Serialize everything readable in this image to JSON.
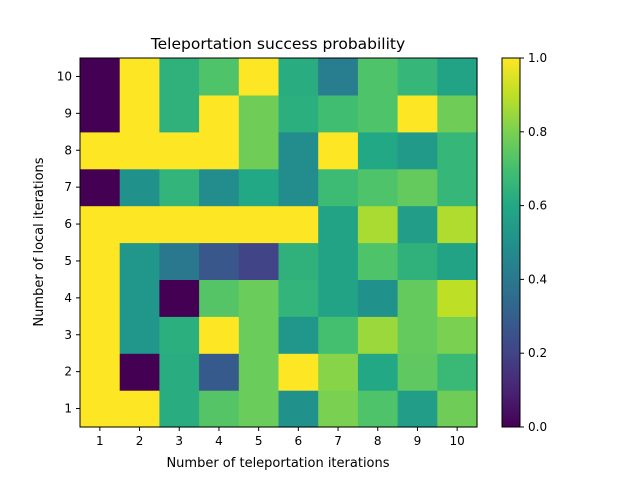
{
  "chart_data": {
    "type": "heatmap",
    "title": "Teleportation success probability",
    "xlabel": "Number of teleportation iterations",
    "ylabel": "Number of local iterations",
    "x_categories": [
      "1",
      "2",
      "3",
      "4",
      "5",
      "6",
      "7",
      "8",
      "9",
      "10"
    ],
    "y_categories": [
      "1",
      "2",
      "3",
      "4",
      "5",
      "6",
      "7",
      "8",
      "9",
      "10"
    ],
    "colormap": "viridis",
    "clim": [
      0,
      1
    ],
    "colorbar_ticks": [
      "0.0",
      "0.2",
      "0.4",
      "0.6",
      "0.8",
      "1.0"
    ],
    "values": [
      [
        1.0,
        1.0,
        0.62,
        0.73,
        0.77,
        0.5,
        0.8,
        0.72,
        0.55,
        0.78
      ],
      [
        1.0,
        0.0,
        0.62,
        0.28,
        0.77,
        1.0,
        0.82,
        0.6,
        0.75,
        0.67
      ],
      [
        1.0,
        0.52,
        0.63,
        1.0,
        0.77,
        0.52,
        0.7,
        0.85,
        0.76,
        0.8
      ],
      [
        1.0,
        0.52,
        0.0,
        0.73,
        0.77,
        0.65,
        0.58,
        0.5,
        0.76,
        0.9
      ],
      [
        1.0,
        0.52,
        0.4,
        0.27,
        0.2,
        0.64,
        0.58,
        0.72,
        0.64,
        0.58
      ],
      [
        1.0,
        1.0,
        1.0,
        1.0,
        1.0,
        1.0,
        0.58,
        0.87,
        0.55,
        0.88
      ],
      [
        0.0,
        0.5,
        0.65,
        0.48,
        0.6,
        0.48,
        0.68,
        0.72,
        0.76,
        0.66
      ],
      [
        1.0,
        1.0,
        1.0,
        1.0,
        0.78,
        0.48,
        1.0,
        0.6,
        0.54,
        0.66
      ],
      [
        0.0,
        1.0,
        0.64,
        1.0,
        0.78,
        0.63,
        0.69,
        0.72,
        1.0,
        0.78
      ],
      [
        0.0,
        1.0,
        0.64,
        0.72,
        1.0,
        0.62,
        0.42,
        0.72,
        0.66,
        0.58
      ]
    ]
  }
}
